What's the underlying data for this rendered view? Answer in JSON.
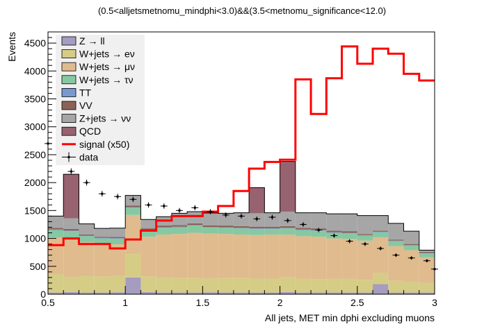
{
  "chart_data": {
    "type": "bar",
    "stacked": true,
    "title": "(0.5<alljetsmetnomu_mindphi<3.0)&&(3.5<metnomu_significance<12.0)",
    "xlabel": "All jets, MET min dphi excluding muons",
    "ylabel": "Events",
    "xlim": [
      0.5,
      3.0
    ],
    "ylim": [
      0,
      4700
    ],
    "xticks": [
      "0.5",
      "1",
      "1.5",
      "2",
      "2.5",
      "3"
    ],
    "xtick_values": [
      0.5,
      1.0,
      1.5,
      2.0,
      2.5,
      3.0
    ],
    "yticks": [
      "0",
      "500",
      "1000",
      "1500",
      "2000",
      "2500",
      "3000",
      "3500",
      "4000",
      "4500"
    ],
    "ytick_values": [
      0,
      500,
      1000,
      1500,
      2000,
      2500,
      3000,
      3500,
      4000,
      4500
    ],
    "bin_edges": [
      0.5,
      0.6,
      0.7,
      0.8,
      0.9,
      1.0,
      1.1,
      1.2,
      1.3,
      1.4,
      1.5,
      1.6,
      1.7,
      1.8,
      1.9,
      2.0,
      2.1,
      2.2,
      2.3,
      2.4,
      2.5,
      2.6,
      2.7,
      2.8,
      2.9,
      3.0
    ],
    "series": [
      {
        "name": "Z → ll",
        "color": "#a59cc0",
        "values": [
          30,
          40,
          30,
          30,
          35,
          300,
          40,
          30,
          30,
          30,
          35,
          30,
          30,
          30,
          30,
          40,
          30,
          30,
          30,
          30,
          30,
          180,
          30,
          30,
          30
        ]
      },
      {
        "name": "W+jets → eν",
        "color": "#d5cc86",
        "values": [
          330,
          270,
          300,
          290,
          300,
          420,
          280,
          270,
          260,
          260,
          250,
          260,
          260,
          250,
          250,
          270,
          250,
          240,
          250,
          250,
          230,
          200,
          210,
          200,
          170
        ]
      },
      {
        "name": "W+jets → μν",
        "color": "#e0bb8e",
        "values": [
          660,
          690,
          600,
          580,
          560,
          700,
          710,
          770,
          790,
          810,
          800,
          790,
          780,
          780,
          790,
          760,
          760,
          760,
          720,
          710,
          700,
          640,
          620,
          560,
          460
        ]
      },
      {
        "name": "W+jets → τν",
        "color": "#86c8a2",
        "values": [
          130,
          130,
          110,
          100,
          100,
          130,
          110,
          120,
          120,
          130,
          110,
          110,
          110,
          110,
          100,
          110,
          110,
          110,
          100,
          100,
          90,
          90,
          90,
          80,
          70
        ]
      },
      {
        "name": "TT",
        "color": "#7a99d1",
        "values": [
          10,
          10,
          10,
          10,
          10,
          10,
          10,
          10,
          10,
          10,
          10,
          10,
          10,
          10,
          10,
          10,
          10,
          10,
          10,
          10,
          10,
          10,
          10,
          10,
          10
        ]
      },
      {
        "name": "VV",
        "color": "#8a6358",
        "values": [
          30,
          30,
          20,
          20,
          20,
          30,
          30,
          30,
          30,
          30,
          30,
          30,
          30,
          30,
          30,
          30,
          30,
          30,
          30,
          30,
          20,
          20,
          20,
          20,
          20
        ]
      },
      {
        "name": "Z+jets → νν",
        "color": "#a6a6a6",
        "values": [
          210,
          190,
          190,
          150,
          160,
          180,
          160,
          160,
          210,
          210,
          220,
          220,
          240,
          240,
          250,
          260,
          270,
          280,
          300,
          310,
          330,
          270,
          290,
          230,
          30
        ]
      },
      {
        "name": "QCD",
        "color": "#976370",
        "values": [
          0,
          790,
          0,
          0,
          0,
          0,
          0,
          0,
          0,
          0,
          0,
          0,
          0,
          460,
          0,
          900,
          0,
          0,
          0,
          0,
          0,
          0,
          0,
          0,
          0
        ]
      }
    ],
    "signal": {
      "name": "signal (x50)",
      "color": "#ff0000",
      "values": [
        880,
        1000,
        900,
        900,
        820,
        980,
        1140,
        1320,
        1400,
        1400,
        1480,
        1580,
        1850,
        2250,
        2370,
        2410,
        3850,
        3230,
        3870,
        4440,
        4130,
        4400,
        4310,
        3950,
        3830
      ]
    },
    "data": {
      "name": "data",
      "values": [
        2700,
        2200,
        2000,
        1800,
        1750,
        1700,
        1600,
        1580,
        1500,
        1550,
        1480,
        1420,
        1400,
        1350,
        1380,
        1320,
        1250,
        1150,
        1050,
        950,
        900,
        820,
        700,
        650,
        600,
        450
      ]
    },
    "data_x": [
      0.5,
      0.65,
      0.75,
      0.85,
      0.95,
      1.05,
      1.15,
      1.25,
      1.35,
      1.45,
      1.55,
      1.65,
      1.75,
      1.85,
      1.95,
      2.05,
      2.15,
      2.25,
      2.35,
      2.45,
      2.55,
      2.65,
      2.75,
      2.85,
      2.95,
      3.0
    ],
    "legend": {
      "placement": "top-left",
      "entries": [
        {
          "label": "Z → ll",
          "kind": "box",
          "color": "#a59cc0"
        },
        {
          "label": "W+jets → eν",
          "kind": "box",
          "color": "#d5cc86"
        },
        {
          "label": "W+jets → μν",
          "kind": "box",
          "color": "#e0bb8e"
        },
        {
          "label": "W+jets → τν",
          "kind": "box",
          "color": "#86c8a2"
        },
        {
          "label": "TT",
          "kind": "box",
          "color": "#7a99d1"
        },
        {
          "label": "VV",
          "kind": "box",
          "color": "#8a6358"
        },
        {
          "label": "Z+jets → νν",
          "kind": "box",
          "color": "#a6a6a6"
        },
        {
          "label": "QCD",
          "kind": "box",
          "color": "#976370"
        },
        {
          "label": "signal (x50)",
          "kind": "line",
          "color": "#ff0000"
        },
        {
          "label": "data",
          "kind": "marker",
          "color": "#000000"
        }
      ]
    }
  }
}
